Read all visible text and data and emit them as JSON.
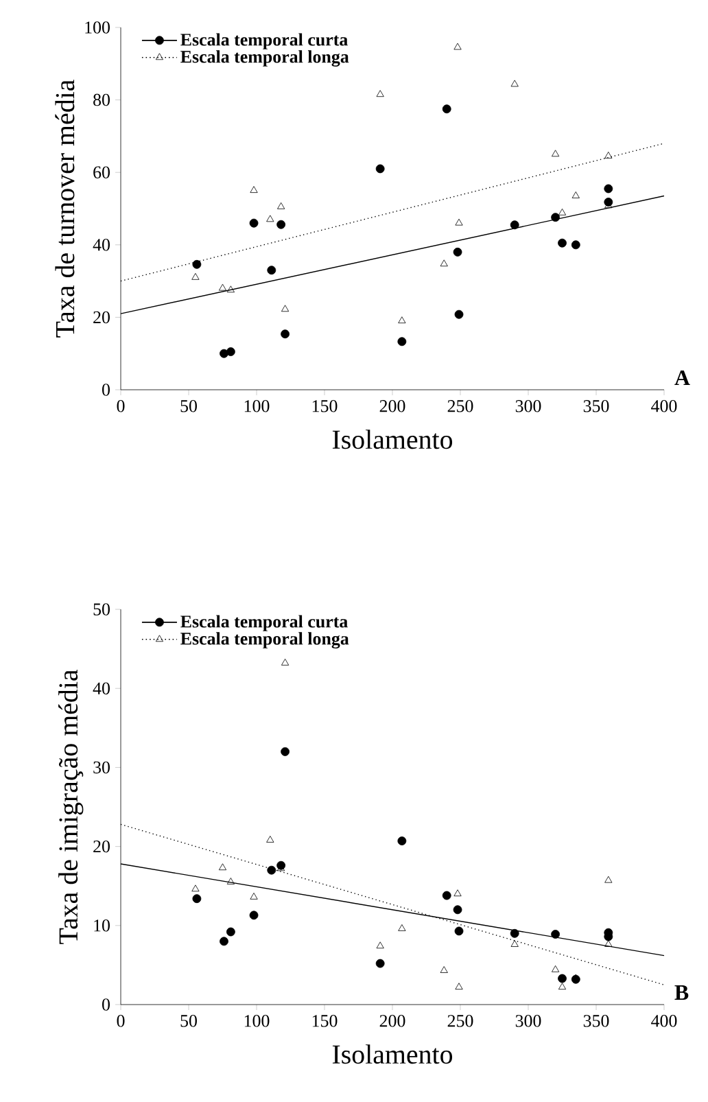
{
  "chart_data": [
    {
      "type": "scatter",
      "xlabel": "Isolamento",
      "ylabel": "Taxa de turnover média",
      "annotations": [
        "A"
      ],
      "xlim": [
        0,
        400
      ],
      "ylim": [
        0,
        100
      ],
      "xticks": [
        0,
        50,
        100,
        150,
        200,
        250,
        300,
        350,
        400
      ],
      "yticks": [
        0,
        20,
        40,
        60,
        80,
        100
      ],
      "legend": "top left",
      "series": [
        {
          "name": "Escala temporal curta",
          "color": "#000000",
          "marker": "circle",
          "line_style": "solid",
          "x": [
            56,
            76,
            81,
            98,
            111,
            118,
            121,
            191,
            207,
            240,
            248,
            249,
            290,
            320,
            325,
            335,
            359,
            359
          ],
          "values": [
            34.6,
            10,
            10.5,
            46,
            33,
            45.6,
            15.4,
            61,
            13.3,
            77.5,
            38,
            20.8,
            45.5,
            47.6,
            40.5,
            40,
            55.5,
            51.8
          ]
        },
        {
          "name": "Escala temporal longa",
          "color": "#000000",
          "marker": "triangle",
          "line_style": "dotted",
          "x": [
            55,
            75,
            81,
            98,
            110,
            118,
            121,
            191,
            207,
            238,
            248,
            249,
            290,
            320,
            325,
            335,
            359,
            359
          ],
          "values": [
            31,
            28,
            27.5,
            55,
            47,
            50.5,
            22.2,
            81.5,
            19,
            34.7,
            94.5,
            46,
            84.3,
            65,
            48.8,
            53.5,
            64.5,
            50.8
          ]
        },
        {
          "type": "line",
          "color": "#000000",
          "line_style": "solid",
          "x": [
            0,
            400
          ],
          "values": [
            21,
            53.5
          ]
        },
        {
          "type": "line",
          "color": "#000000",
          "line_style": "dotted",
          "x": [
            0,
            400
          ],
          "values": [
            30,
            68
          ]
        }
      ]
    },
    {
      "type": "scatter",
      "xlabel": "Isolamento",
      "ylabel": "Taxa de imigração média",
      "annotations": [
        "B"
      ],
      "xlim": [
        0,
        400
      ],
      "ylim": [
        0,
        50
      ],
      "xticks": [
        0,
        50,
        100,
        150,
        200,
        250,
        300,
        350,
        400
      ],
      "yticks": [
        0,
        10,
        20,
        30,
        40,
        50
      ],
      "legend": "top left",
      "series": [
        {
          "name": "Escala temporal curta",
          "color": "#000000",
          "marker": "circle",
          "line_style": "solid",
          "x": [
            56,
            76,
            81,
            98,
            111,
            118,
            121,
            191,
            207,
            240,
            248,
            249,
            290,
            320,
            325,
            335,
            359,
            359
          ],
          "values": [
            13.4,
            8,
            9.2,
            11.3,
            17,
            17.6,
            32,
            5.2,
            20.7,
            13.8,
            12,
            9.3,
            9,
            8.9,
            3.3,
            3.2,
            9.1,
            8.6
          ]
        },
        {
          "name": "Escala temporal longa",
          "color": "#000000",
          "marker": "triangle",
          "line_style": "dotted",
          "x": [
            55,
            75,
            81,
            98,
            110,
            118,
            121,
            191,
            207,
            238,
            248,
            249,
            290,
            320,
            325,
            335,
            359,
            359
          ],
          "values": [
            14.6,
            17.3,
            15.5,
            13.6,
            20.8,
            17.2,
            43.2,
            7.4,
            9.6,
            4.3,
            14,
            2.2,
            7.6,
            4.4,
            2.2,
            3.3,
            15.7,
            7.6
          ]
        },
        {
          "type": "line",
          "color": "#000000",
          "line_style": "solid",
          "x": [
            0,
            400
          ],
          "values": [
            17.8,
            6.2
          ]
        },
        {
          "type": "line",
          "color": "#000000",
          "line_style": "dotted",
          "x": [
            0,
            400
          ],
          "values": [
            22.8,
            2.5
          ]
        }
      ]
    }
  ]
}
